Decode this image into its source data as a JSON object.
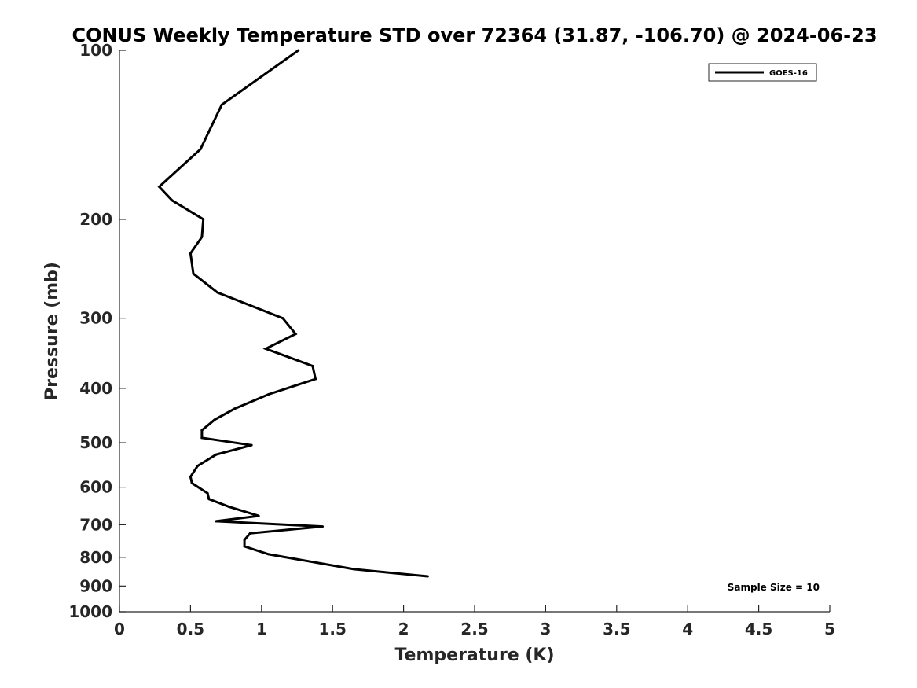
{
  "chart_data": {
    "type": "line",
    "title": "CONUS Weekly Temperature STD over 72364 (31.87, -106.70) @ 2024-06-23",
    "xlabel": "Temperature (K)",
    "ylabel": "Pressure (mb)",
    "xlim": [
      0,
      5
    ],
    "ylim": [
      1000,
      100
    ],
    "yscale": "log",
    "y_reversed": true,
    "grid": false,
    "legend_position": "top-right",
    "x_ticks": [
      0,
      0.5,
      1,
      1.5,
      2,
      2.5,
      3,
      3.5,
      4,
      4.5,
      5
    ],
    "x_tick_labels": [
      "0",
      "0.5",
      "1",
      "1.5",
      "2",
      "2.5",
      "3",
      "3.5",
      "4",
      "4.5",
      "5"
    ],
    "y_ticks": [
      100,
      200,
      300,
      400,
      500,
      600,
      700,
      800,
      900,
      1000
    ],
    "y_tick_labels": [
      "100",
      "200",
      "300",
      "400",
      "500",
      "600",
      "700",
      "800",
      "900",
      "1000"
    ],
    "series": [
      {
        "name": "GOES-16",
        "color": "#000000",
        "points": [
          {
            "x": 1.26,
            "y": 100
          },
          {
            "x": 0.72,
            "y": 125
          },
          {
            "x": 0.57,
            "y": 150
          },
          {
            "x": 0.28,
            "y": 175
          },
          {
            "x": 0.37,
            "y": 185
          },
          {
            "x": 0.59,
            "y": 200
          },
          {
            "x": 0.58,
            "y": 215
          },
          {
            "x": 0.5,
            "y": 230
          },
          {
            "x": 0.52,
            "y": 250
          },
          {
            "x": 0.69,
            "y": 270
          },
          {
            "x": 1.15,
            "y": 300
          },
          {
            "x": 1.24,
            "y": 320
          },
          {
            "x": 1.03,
            "y": 340
          },
          {
            "x": 1.36,
            "y": 365
          },
          {
            "x": 1.38,
            "y": 385
          },
          {
            "x": 1.05,
            "y": 410
          },
          {
            "x": 0.81,
            "y": 435
          },
          {
            "x": 0.67,
            "y": 455
          },
          {
            "x": 0.58,
            "y": 475
          },
          {
            "x": 0.58,
            "y": 490
          },
          {
            "x": 0.93,
            "y": 505
          },
          {
            "x": 0.68,
            "y": 525
          },
          {
            "x": 0.55,
            "y": 550
          },
          {
            "x": 0.5,
            "y": 575
          },
          {
            "x": 0.51,
            "y": 590
          },
          {
            "x": 0.62,
            "y": 615
          },
          {
            "x": 0.63,
            "y": 630
          },
          {
            "x": 0.77,
            "y": 650
          },
          {
            "x": 0.98,
            "y": 675
          },
          {
            "x": 0.68,
            "y": 690
          },
          {
            "x": 1.43,
            "y": 705
          },
          {
            "x": 0.92,
            "y": 725
          },
          {
            "x": 0.88,
            "y": 745
          },
          {
            "x": 0.88,
            "y": 765
          },
          {
            "x": 1.05,
            "y": 790
          },
          {
            "x": 1.65,
            "y": 840
          },
          {
            "x": 2.17,
            "y": 865
          }
        ]
      }
    ],
    "annotations": [
      {
        "text": "Sample Size = 10",
        "position": "bottom-right"
      }
    ]
  }
}
